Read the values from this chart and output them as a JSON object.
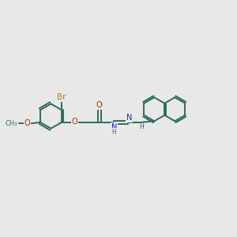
{
  "bg_color": "#e8e8e8",
  "bond_color": "#2d6b5e",
  "bond_width": 1.4,
  "atom_colors": {
    "Br": "#c87800",
    "O": "#cc2200",
    "N": "#1a1aee",
    "C": "#2d6b5e",
    "H": "#2d6b5e"
  },
  "font_size": 7.0
}
